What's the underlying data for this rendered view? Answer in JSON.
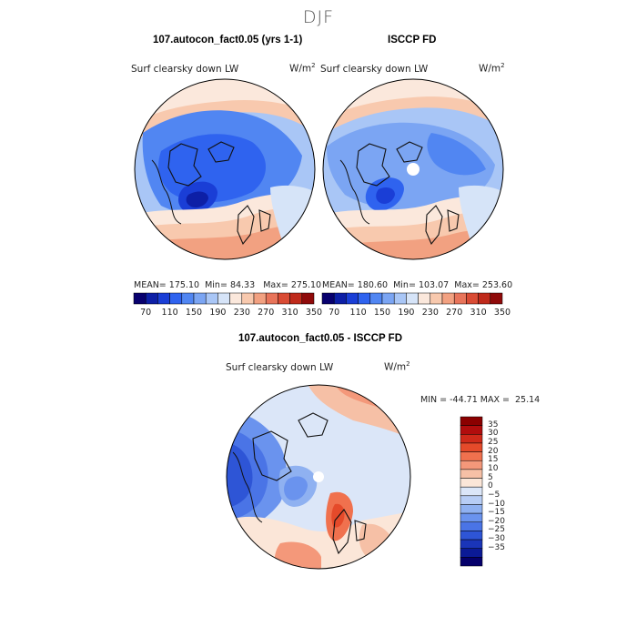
{
  "figure": {
    "season": "DJF",
    "panel_left_title": "107.autocon_fact0.05 (yrs 1-1)",
    "panel_right_title": "ISCCP FD",
    "panel_diff_title": "107.autocon_fact0.05 - ISCCP FD",
    "variable": "Surf clearsky down LW",
    "units_base": "W/m",
    "units_exp": "2"
  },
  "stats": {
    "left": {
      "mean_label": "MEAN=",
      "mean": "175.10",
      "min_label": "Min=",
      "min": "84.33",
      "max_label": "Max=",
      "max": "275.10"
    },
    "right": {
      "mean_label": "MEAN=",
      "mean": "180.60",
      "min_label": "Min=",
      "min": "103.07",
      "max_label": "Max=",
      "max": "253.60"
    },
    "diff": {
      "min_label": "MIN =",
      "min": "-44.71",
      "max_label": "MAX =",
      "max": "25.14"
    }
  },
  "colorbar_top": {
    "colors": [
      "#08006e",
      "#0d1fa6",
      "#1a3ed6",
      "#2f63ef",
      "#5186f2",
      "#7ba5f3",
      "#a9c6f6",
      "#d6e4f8",
      "#fbe8dc",
      "#f8c9ae",
      "#f2a181",
      "#e8745a",
      "#d94b34",
      "#bf2a1b",
      "#8f0a0a"
    ],
    "labels": [
      "70",
      "110",
      "150",
      "190",
      "230",
      "270",
      "310",
      "350"
    ]
  },
  "colorbar_diff": {
    "colors": [
      "#8b0000",
      "#b10d0d",
      "#cf2a1a",
      "#e54a2a",
      "#f0714e",
      "#f4987a",
      "#f6c0a6",
      "#fbe6d8",
      "#dbe6f8",
      "#b7cdf5",
      "#8fb1f1",
      "#6a93ee",
      "#4a74e6",
      "#2e55d6",
      "#1a35b8",
      "#0b1a96",
      "#05006b"
    ],
    "labels": [
      "35",
      "30",
      "25",
      "20",
      "15",
      "10",
      "5",
      "0",
      "−5",
      "−10",
      "−15",
      "−20",
      "−25",
      "−30",
      "−35"
    ]
  }
}
